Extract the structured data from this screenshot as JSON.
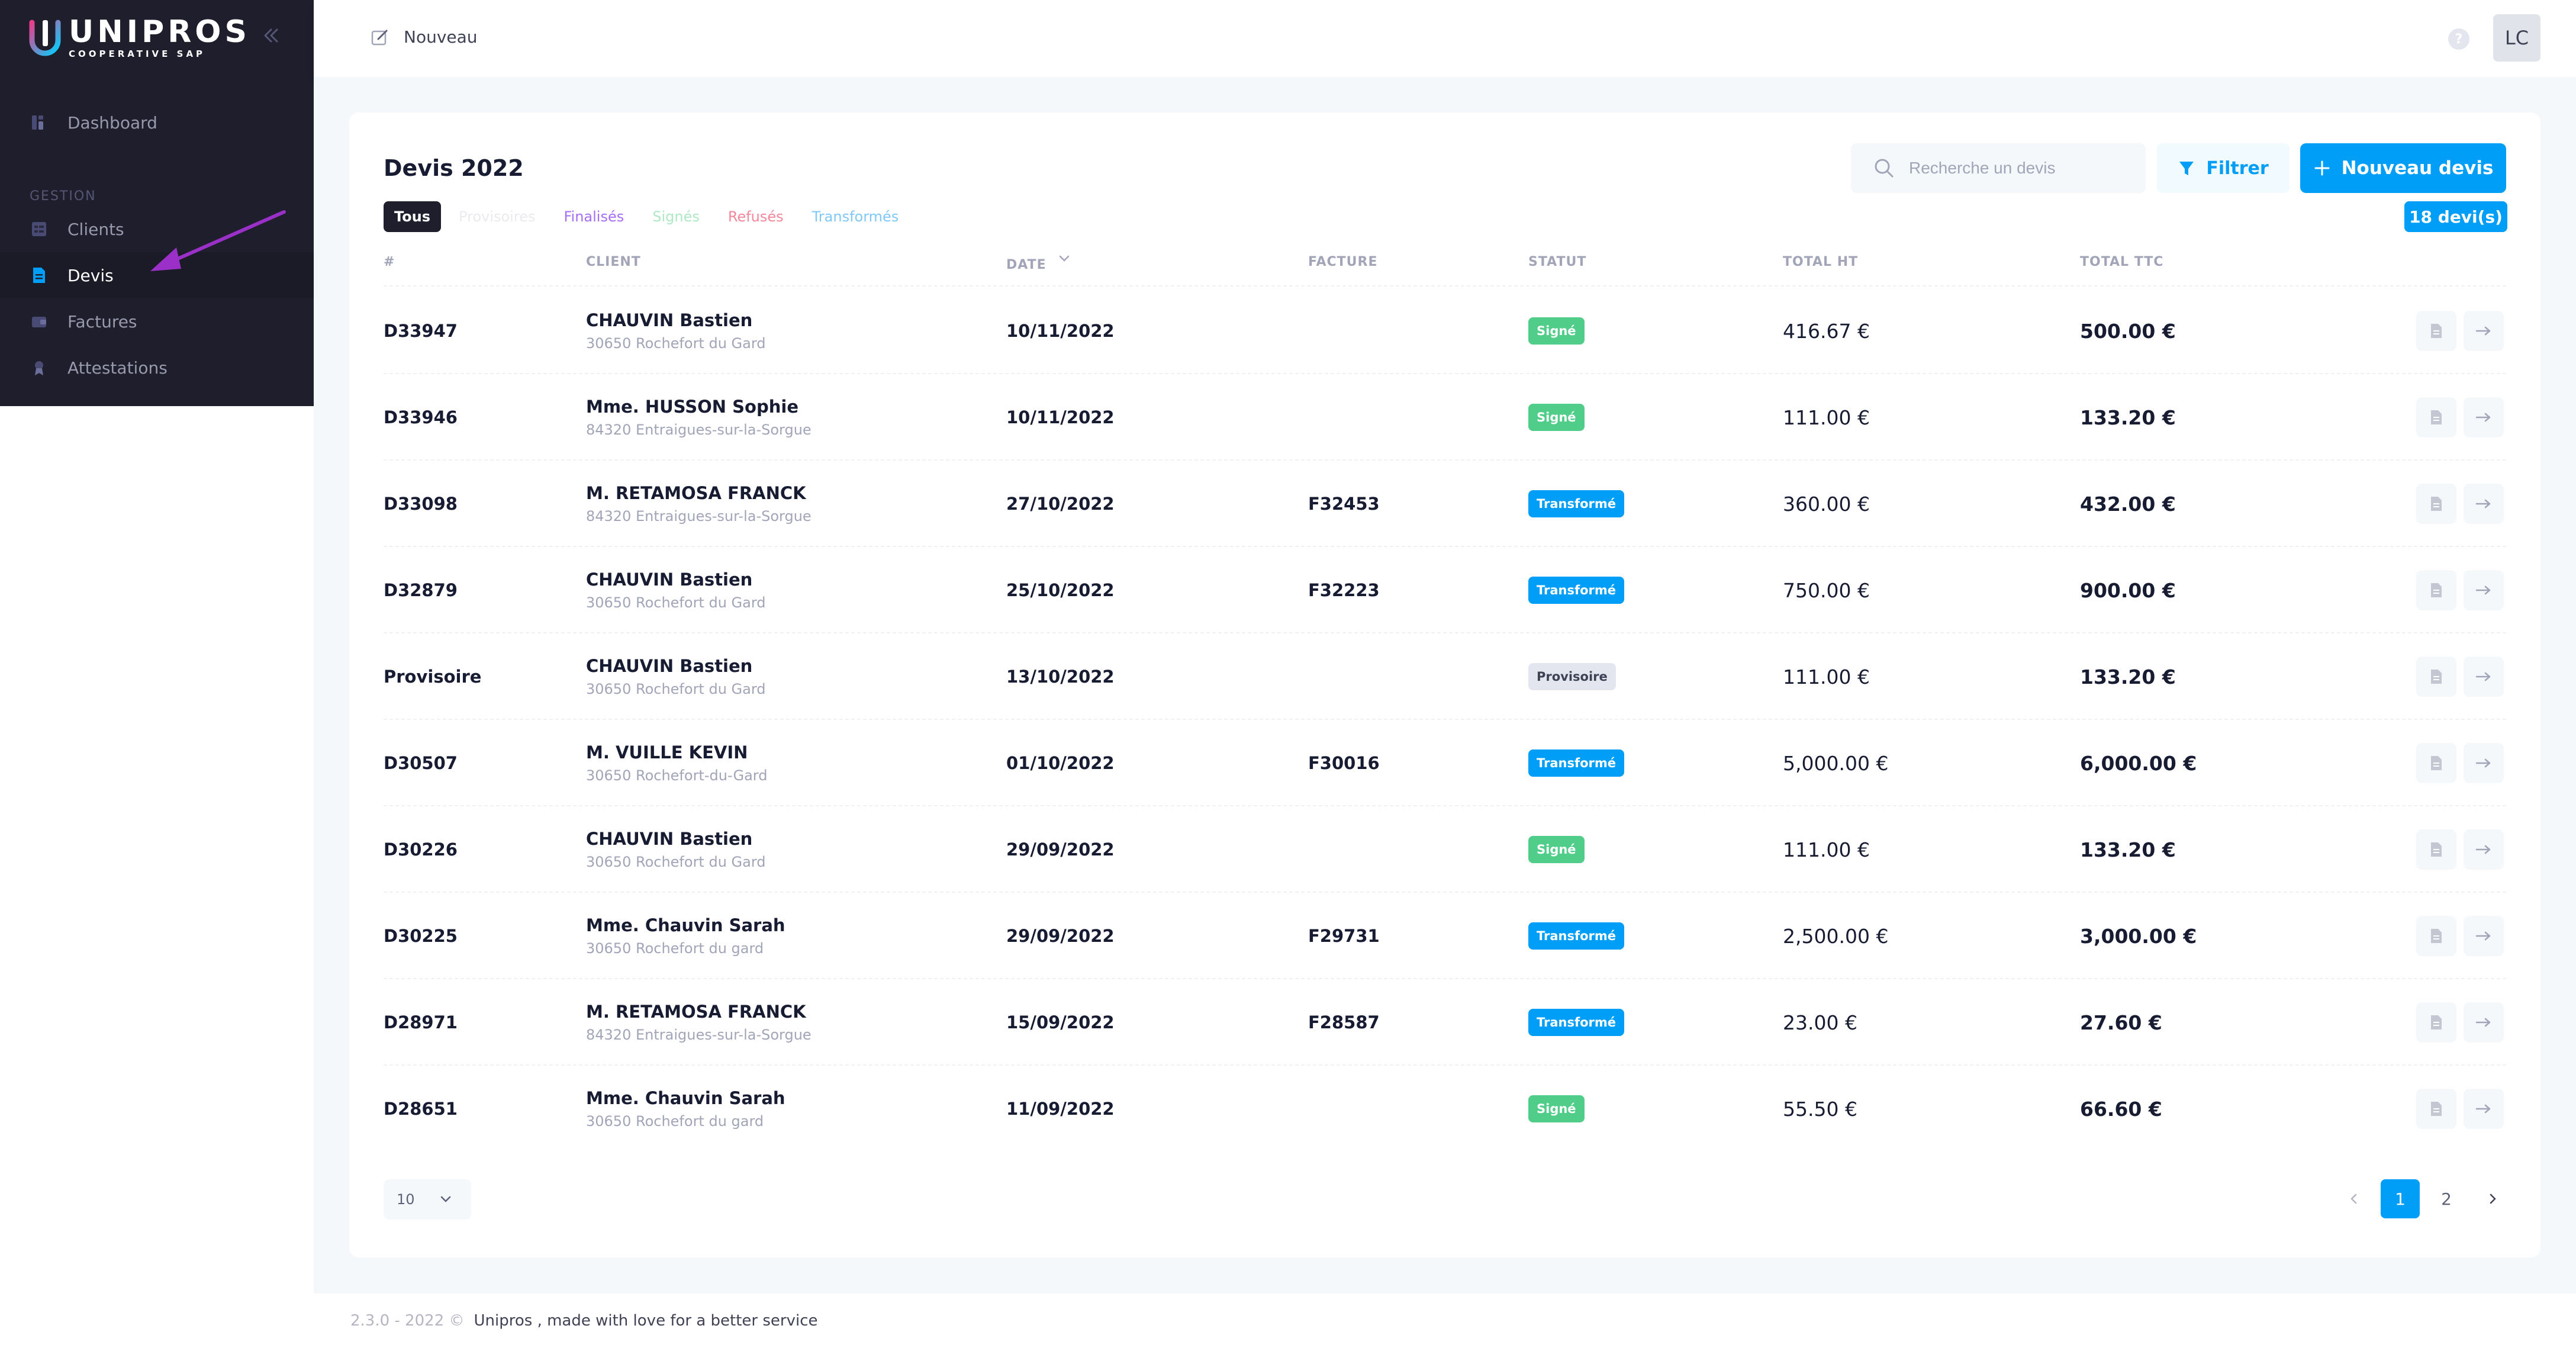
{
  "app": {
    "logo_name": "UNIPROS",
    "logo_sub": "COOPERATIVE SAP"
  },
  "sidebar": {
    "dashboard_label": "Dashboard",
    "section_label": "GESTION",
    "items": [
      {
        "label": "Clients",
        "icon": "users-icon"
      },
      {
        "label": "Devis",
        "icon": "document-icon",
        "active": true
      },
      {
        "label": "Factures",
        "icon": "wallet-icon"
      },
      {
        "label": "Attestations",
        "icon": "certificate-icon"
      }
    ]
  },
  "header": {
    "new_label": "Nouveau",
    "help": "?",
    "avatar": "LC"
  },
  "card": {
    "title": "Devis 2022",
    "tabs": [
      "Tous",
      "Provisoires",
      "Finalisés",
      "Signés",
      "Refusés",
      "Transformés"
    ],
    "search_placeholder": "Recherche un devis",
    "filter_label": "Filtrer",
    "new_label": "Nouveau devis",
    "count": "18 devi(s)"
  },
  "table": {
    "columns": [
      "#",
      "CLIENT",
      "DATE",
      "FACTURE",
      "STATUT",
      "TOTAL HT",
      "TOTAL TTC"
    ],
    "rows": [
      {
        "num": "D33947",
        "client": "CHAUVIN Bastien",
        "addr": "30650 Rochefort du Gard",
        "date": "10/11/2022",
        "facture": "",
        "statut": "Signé",
        "ht": "416.67 €",
        "ttc": "500.00 €"
      },
      {
        "num": "D33946",
        "client": "Mme. HUSSON Sophie",
        "addr": "84320 Entraigues-sur-la-Sorgue",
        "date": "10/11/2022",
        "facture": "",
        "statut": "Signé",
        "ht": "111.00 €",
        "ttc": "133.20 €"
      },
      {
        "num": "D33098",
        "client": "M. RETAMOSA FRANCK",
        "addr": "84320 Entraigues-sur-la-Sorgue",
        "date": "27/10/2022",
        "facture": "F32453",
        "statut": "Transformé",
        "ht": "360.00 €",
        "ttc": "432.00 €"
      },
      {
        "num": "D32879",
        "client": "CHAUVIN Bastien",
        "addr": "30650 Rochefort du Gard",
        "date": "25/10/2022",
        "facture": "F32223",
        "statut": "Transformé",
        "ht": "750.00 €",
        "ttc": "900.00 €"
      },
      {
        "num": "Provisoire",
        "client": "CHAUVIN Bastien",
        "addr": "30650 Rochefort du Gard",
        "date": "13/10/2022",
        "facture": "",
        "statut": "Provisoire",
        "ht": "111.00 €",
        "ttc": "133.20 €"
      },
      {
        "num": "D30507",
        "client": "M. VUILLE KEVIN",
        "addr": "30650 Rochefort-du-Gard",
        "date": "01/10/2022",
        "facture": "F30016",
        "statut": "Transformé",
        "ht": "5,000.00 €",
        "ttc": "6,000.00 €"
      },
      {
        "num": "D30226",
        "client": "CHAUVIN Bastien",
        "addr": "30650 Rochefort du Gard",
        "date": "29/09/2022",
        "facture": "",
        "statut": "Signé",
        "ht": "111.00 €",
        "ttc": "133.20 €"
      },
      {
        "num": "D30225",
        "client": "Mme. Chauvin Sarah",
        "addr": "30650 Rochefort du gard",
        "date": "29/09/2022",
        "facture": "F29731",
        "statut": "Transformé",
        "ht": "2,500.00 €",
        "ttc": "3,000.00 €"
      },
      {
        "num": "D28971",
        "client": "M. RETAMOSA FRANCK",
        "addr": "84320 Entraigues-sur-la-Sorgue",
        "date": "15/09/2022",
        "facture": "F28587",
        "statut": "Transformé",
        "ht": "23.00 €",
        "ttc": "27.60 €"
      },
      {
        "num": "D28651",
        "client": "Mme. Chauvin Sarah",
        "addr": "30650 Rochefort du gard",
        "date": "11/09/2022",
        "facture": "",
        "statut": "Signé",
        "ht": "55.50 €",
        "ttc": "66.60 €"
      }
    ]
  },
  "pagination": {
    "page_size": "10",
    "pages": [
      "1",
      "2"
    ],
    "current": "1"
  },
  "footer": {
    "version": "2.3.0 - 2022 ©",
    "brand": "Unipros , made with love for a better service"
  },
  "colors": {
    "primary": "#009ef7",
    "success": "#50cd89",
    "sidebar": "#1e1e2d",
    "annotation": "#9b30c8"
  }
}
